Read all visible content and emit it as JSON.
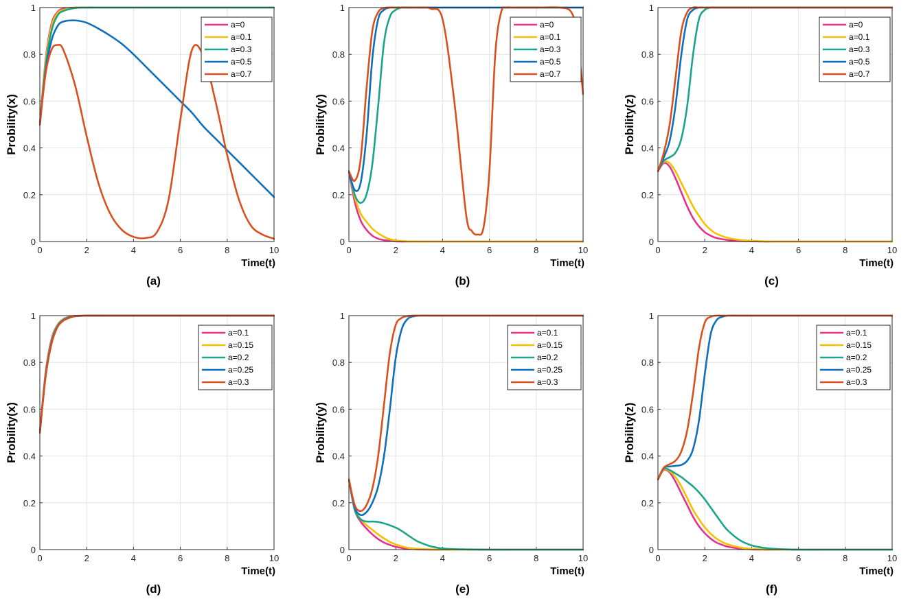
{
  "chart_data": [
    {
      "id": "a",
      "type": "line",
      "panel_label": "(a)",
      "xlabel": "Time(t)",
      "ylabel": "Probility(x)",
      "xlim": [
        0,
        10
      ],
      "ylim": [
        0,
        1
      ],
      "xticks": [
        "0",
        "2",
        "4",
        "6",
        "8",
        "10"
      ],
      "yticks": [
        "0",
        "0.2",
        "0.4",
        "0.6",
        "0.8",
        "1"
      ],
      "grid": true,
      "legend": "top-right",
      "x": [
        0,
        0.25,
        0.5,
        0.75,
        1,
        1.5,
        2,
        2.5,
        3,
        3.5,
        4,
        4.5,
        5,
        5.5,
        6,
        6.5,
        7,
        7.5,
        8,
        8.5,
        9,
        9.5,
        10
      ],
      "series": [
        {
          "name": "a=0",
          "color": "#e6318a",
          "values": [
            0.5,
            0.78,
            0.93,
            0.98,
            0.995,
            1,
            1,
            1,
            1,
            1,
            1,
            1,
            1,
            1,
            1,
            1,
            1,
            1,
            1,
            1,
            1,
            1,
            1
          ]
        },
        {
          "name": "a=0.1",
          "color": "#f5c000",
          "values": [
            0.5,
            0.77,
            0.92,
            0.975,
            0.99,
            1,
            1,
            1,
            1,
            1,
            1,
            1,
            1,
            1,
            1,
            1,
            1,
            1,
            1,
            1,
            1,
            1,
            1
          ]
        },
        {
          "name": "a=0.3",
          "color": "#1aa58a",
          "values": [
            0.5,
            0.75,
            0.9,
            0.965,
            0.985,
            0.998,
            1,
            1,
            1,
            1,
            1,
            1,
            1,
            1,
            1,
            1,
            1,
            1,
            1,
            1,
            1,
            1,
            1
          ]
        },
        {
          "name": "a=0.5",
          "color": "#0e6fbd",
          "values": [
            0.5,
            0.73,
            0.86,
            0.92,
            0.94,
            0.945,
            0.935,
            0.91,
            0.88,
            0.845,
            0.8,
            0.75,
            0.7,
            0.65,
            0.6,
            0.55,
            0.49,
            0.44,
            0.39,
            0.34,
            0.29,
            0.24,
            0.19
          ]
        },
        {
          "name": "a=0.7",
          "color": "#d9501e",
          "values": [
            0.5,
            0.72,
            0.82,
            0.84,
            0.82,
            0.67,
            0.45,
            0.25,
            0.12,
            0.05,
            0.02,
            0.015,
            0.04,
            0.18,
            0.52,
            0.82,
            0.79,
            0.6,
            0.37,
            0.18,
            0.07,
            0.03,
            0.012
          ]
        }
      ]
    },
    {
      "id": "b",
      "type": "line",
      "panel_label": "(b)",
      "xlabel": "Time(t)",
      "ylabel": "Probility(y)",
      "xlim": [
        0,
        10
      ],
      "ylim": [
        0,
        1
      ],
      "xticks": [
        "0",
        "2",
        "4",
        "6",
        "8",
        "10"
      ],
      "yticks": [
        "0",
        "0.2",
        "0.4",
        "0.6",
        "0.8",
        "1"
      ],
      "grid": true,
      "legend": "top-right",
      "x": [
        0,
        0.25,
        0.5,
        0.75,
        1,
        1.25,
        1.5,
        1.75,
        2,
        2.25,
        2.5,
        3,
        3.5,
        4,
        4.5,
        5,
        5.25,
        5.5,
        5.75,
        6,
        6.25,
        6.5,
        6.75,
        7,
        8,
        9,
        9.5,
        9.75,
        10
      ],
      "series": [
        {
          "name": "a=0",
          "color": "#e6318a",
          "values": [
            0.3,
            0.17,
            0.09,
            0.05,
            0.025,
            0.012,
            0.006,
            0.003,
            0.001,
            0,
            0,
            0,
            0,
            0,
            0,
            0,
            0,
            0,
            0,
            0,
            0,
            0,
            0,
            0,
            0,
            0,
            0,
            0,
            0
          ]
        },
        {
          "name": "a=0.1",
          "color": "#f5c000",
          "values": [
            0.3,
            0.19,
            0.12,
            0.085,
            0.055,
            0.035,
            0.02,
            0.01,
            0.005,
            0.002,
            0.001,
            0,
            0,
            0,
            0,
            0,
            0,
            0,
            0,
            0,
            0,
            0,
            0,
            0,
            0,
            0,
            0,
            0,
            0
          ]
        },
        {
          "name": "a=0.3",
          "color": "#1aa58a",
          "values": [
            0.3,
            0.2,
            0.165,
            0.2,
            0.33,
            0.58,
            0.85,
            0.96,
            0.99,
            1,
            1,
            1,
            1,
            1,
            1,
            1,
            1,
            1,
            1,
            1,
            1,
            1,
            1,
            1,
            1,
            1,
            1,
            1,
            1
          ]
        },
        {
          "name": "a=0.5",
          "color": "#0e6fbd",
          "values": [
            0.3,
            0.22,
            0.25,
            0.45,
            0.78,
            0.95,
            0.99,
            1,
            1,
            1,
            1,
            1,
            1,
            1,
            1,
            1,
            1,
            1,
            1,
            1,
            1,
            1,
            1,
            1,
            1,
            1,
            1,
            1,
            1
          ]
        },
        {
          "name": "a=0.7",
          "color": "#d9501e",
          "values": [
            0.3,
            0.26,
            0.35,
            0.65,
            0.9,
            0.98,
            0.998,
            1,
            1,
            1,
            1,
            1,
            0.995,
            0.95,
            0.6,
            0.12,
            0.045,
            0.03,
            0.06,
            0.3,
            0.8,
            0.98,
            1,
            1,
            1,
            1,
            0.98,
            0.88,
            0.63
          ]
        }
      ]
    },
    {
      "id": "c",
      "type": "line",
      "panel_label": "(c)",
      "xlabel": "Time(t)",
      "ylabel": "Probility(z)",
      "xlim": [
        0,
        10
      ],
      "ylim": [
        0,
        1
      ],
      "xticks": [
        "0",
        "2",
        "4",
        "6",
        "8",
        "10"
      ],
      "yticks": [
        "0",
        "0.2",
        "0.4",
        "0.6",
        "0.8",
        "1"
      ],
      "grid": true,
      "legend": "top-right",
      "x": [
        0,
        0.25,
        0.5,
        0.75,
        1,
        1.25,
        1.5,
        1.75,
        2,
        2.25,
        2.5,
        3,
        3.5,
        4,
        4.5,
        5,
        6,
        7,
        8,
        9,
        10
      ],
      "series": [
        {
          "name": "a=0",
          "color": "#e6318a",
          "values": [
            0.3,
            0.335,
            0.32,
            0.27,
            0.21,
            0.15,
            0.1,
            0.065,
            0.04,
            0.025,
            0.015,
            0.006,
            0.002,
            0.001,
            0,
            0,
            0,
            0,
            0,
            0,
            0
          ]
        },
        {
          "name": "a=0.1",
          "color": "#f5c000",
          "values": [
            0.3,
            0.34,
            0.335,
            0.3,
            0.25,
            0.2,
            0.15,
            0.11,
            0.075,
            0.05,
            0.033,
            0.015,
            0.007,
            0.003,
            0.001,
            0,
            0,
            0,
            0,
            0,
            0
          ]
        },
        {
          "name": "a=0.3",
          "color": "#1aa58a",
          "values": [
            0.3,
            0.345,
            0.36,
            0.38,
            0.44,
            0.58,
            0.8,
            0.95,
            0.99,
            1,
            1,
            1,
            1,
            1,
            1,
            1,
            1,
            1,
            1,
            1,
            1
          ]
        },
        {
          "name": "a=0.5",
          "color": "#0e6fbd",
          "values": [
            0.3,
            0.36,
            0.43,
            0.58,
            0.8,
            0.95,
            0.99,
            1,
            1,
            1,
            1,
            1,
            1,
            1,
            1,
            1,
            1,
            1,
            1,
            1,
            1
          ]
        },
        {
          "name": "a=0.7",
          "color": "#d9501e",
          "values": [
            0.3,
            0.38,
            0.5,
            0.7,
            0.9,
            0.98,
            1,
            1,
            1,
            1,
            1,
            1,
            1,
            1,
            1,
            1,
            1,
            1,
            1,
            1,
            1
          ]
        }
      ]
    },
    {
      "id": "d",
      "type": "line",
      "panel_label": "(d)",
      "xlabel": "Time(t)",
      "ylabel": "Probility(x)",
      "xlim": [
        0,
        10
      ],
      "ylim": [
        0,
        1
      ],
      "xticks": [
        "0",
        "2",
        "4",
        "6",
        "8",
        "10"
      ],
      "yticks": [
        "0",
        "0.2",
        "0.4",
        "0.6",
        "0.8",
        "1"
      ],
      "grid": true,
      "legend": "top-right",
      "x": [
        0,
        0.25,
        0.5,
        0.75,
        1,
        1.25,
        1.5,
        2,
        3,
        4,
        6,
        8,
        10
      ],
      "series": [
        {
          "name": "a=0.1",
          "color": "#e6318a",
          "values": [
            0.5,
            0.76,
            0.9,
            0.96,
            0.985,
            0.995,
            0.999,
            1,
            1,
            1,
            1,
            1,
            1
          ]
        },
        {
          "name": "a=0.15",
          "color": "#f5c000",
          "values": [
            0.5,
            0.755,
            0.895,
            0.958,
            0.984,
            0.994,
            0.998,
            1,
            1,
            1,
            1,
            1,
            1
          ]
        },
        {
          "name": "a=0.2",
          "color": "#1aa58a",
          "values": [
            0.5,
            0.75,
            0.89,
            0.955,
            0.982,
            0.993,
            0.998,
            1,
            1,
            1,
            1,
            1,
            1
          ]
        },
        {
          "name": "a=0.25",
          "color": "#0e6fbd",
          "values": [
            0.5,
            0.745,
            0.885,
            0.952,
            0.98,
            0.992,
            0.997,
            1,
            1,
            1,
            1,
            1,
            1
          ]
        },
        {
          "name": "a=0.3",
          "color": "#d9501e",
          "values": [
            0.5,
            0.74,
            0.88,
            0.95,
            0.978,
            0.99,
            0.997,
            1,
            1,
            1,
            1,
            1,
            1
          ]
        }
      ]
    },
    {
      "id": "e",
      "type": "line",
      "panel_label": "(e)",
      "xlabel": "Time(t)",
      "ylabel": "Probility(y)",
      "xlim": [
        0,
        10
      ],
      "ylim": [
        0,
        1
      ],
      "xticks": [
        "0",
        "2",
        "4",
        "6",
        "8",
        "10"
      ],
      "yticks": [
        "0",
        "0.2",
        "0.4",
        "0.6",
        "0.8",
        "1"
      ],
      "grid": true,
      "legend": "top-right",
      "x": [
        0,
        0.25,
        0.5,
        0.75,
        1,
        1.25,
        1.5,
        1.75,
        2,
        2.25,
        2.5,
        2.75,
        3,
        3.5,
        4,
        4.5,
        5,
        6,
        7,
        8,
        10
      ],
      "series": [
        {
          "name": "a=0.1",
          "color": "#e6318a",
          "values": [
            0.3,
            0.17,
            0.12,
            0.09,
            0.065,
            0.045,
            0.03,
            0.02,
            0.012,
            0.007,
            0.004,
            0.002,
            0.001,
            0,
            0,
            0,
            0,
            0,
            0,
            0,
            0
          ]
        },
        {
          "name": "a=0.15",
          "color": "#f5c000",
          "values": [
            0.3,
            0.18,
            0.13,
            0.105,
            0.085,
            0.065,
            0.048,
            0.033,
            0.022,
            0.014,
            0.008,
            0.005,
            0.003,
            0.001,
            0,
            0,
            0,
            0,
            0,
            0,
            0
          ]
        },
        {
          "name": "a=0.2",
          "color": "#1aa58a",
          "values": [
            0.3,
            0.17,
            0.13,
            0.12,
            0.12,
            0.118,
            0.112,
            0.104,
            0.094,
            0.08,
            0.063,
            0.046,
            0.032,
            0.014,
            0.005,
            0.002,
            0.001,
            0,
            0,
            0,
            0
          ]
        },
        {
          "name": "a=0.25",
          "color": "#0e6fbd",
          "values": [
            0.3,
            0.18,
            0.148,
            0.16,
            0.2,
            0.27,
            0.4,
            0.6,
            0.82,
            0.94,
            0.985,
            0.997,
            1,
            1,
            1,
            1,
            1,
            1,
            1,
            1,
            1
          ]
        },
        {
          "name": "a=0.3",
          "color": "#d9501e",
          "values": [
            0.3,
            0.19,
            0.165,
            0.19,
            0.26,
            0.4,
            0.62,
            0.84,
            0.96,
            0.99,
            0.998,
            1,
            1,
            1,
            1,
            1,
            1,
            1,
            1,
            1,
            1
          ]
        }
      ]
    },
    {
      "id": "f",
      "type": "line",
      "panel_label": "(f)",
      "xlabel": "Time(t)",
      "ylabel": "Probility(z)",
      "xlim": [
        0,
        10
      ],
      "ylim": [
        0,
        1
      ],
      "xticks": [
        "0",
        "2",
        "4",
        "6",
        "8",
        "10"
      ],
      "yticks": [
        "0",
        "0.2",
        "0.4",
        "0.6",
        "0.8",
        "1"
      ],
      "grid": true,
      "legend": "top-right",
      "x": [
        0,
        0.25,
        0.5,
        0.75,
        1,
        1.25,
        1.5,
        1.75,
        2,
        2.25,
        2.5,
        2.75,
        3,
        3.5,
        4,
        4.5,
        5,
        5.5,
        6,
        7,
        8,
        10
      ],
      "series": [
        {
          "name": "a=0.1",
          "color": "#e6318a",
          "values": [
            0.3,
            0.34,
            0.33,
            0.29,
            0.24,
            0.19,
            0.14,
            0.1,
            0.07,
            0.047,
            0.03,
            0.02,
            0.012,
            0.004,
            0.001,
            0,
            0,
            0,
            0,
            0,
            0,
            0
          ]
        },
        {
          "name": "a=0.15",
          "color": "#f5c000",
          "values": [
            0.3,
            0.342,
            0.335,
            0.31,
            0.27,
            0.22,
            0.17,
            0.13,
            0.095,
            0.068,
            0.047,
            0.032,
            0.022,
            0.009,
            0.003,
            0.001,
            0,
            0,
            0,
            0,
            0,
            0
          ]
        },
        {
          "name": "a=0.2",
          "color": "#1aa58a",
          "values": [
            0.3,
            0.345,
            0.34,
            0.325,
            0.31,
            0.29,
            0.27,
            0.245,
            0.215,
            0.18,
            0.145,
            0.11,
            0.08,
            0.04,
            0.018,
            0.008,
            0.003,
            0.001,
            0,
            0,
            0,
            0
          ]
        },
        {
          "name": "a=0.25",
          "color": "#0e6fbd",
          "values": [
            0.3,
            0.35,
            0.355,
            0.358,
            0.362,
            0.38,
            0.43,
            0.55,
            0.75,
            0.92,
            0.98,
            0.995,
            1,
            1,
            1,
            1,
            1,
            1,
            1,
            1,
            1,
            1
          ]
        },
        {
          "name": "a=0.3",
          "color": "#d9501e",
          "values": [
            0.3,
            0.35,
            0.365,
            0.38,
            0.42,
            0.51,
            0.67,
            0.86,
            0.97,
            0.995,
            1,
            1,
            1,
            1,
            1,
            1,
            1,
            1,
            1,
            1,
            1,
            1
          ]
        }
      ]
    }
  ]
}
